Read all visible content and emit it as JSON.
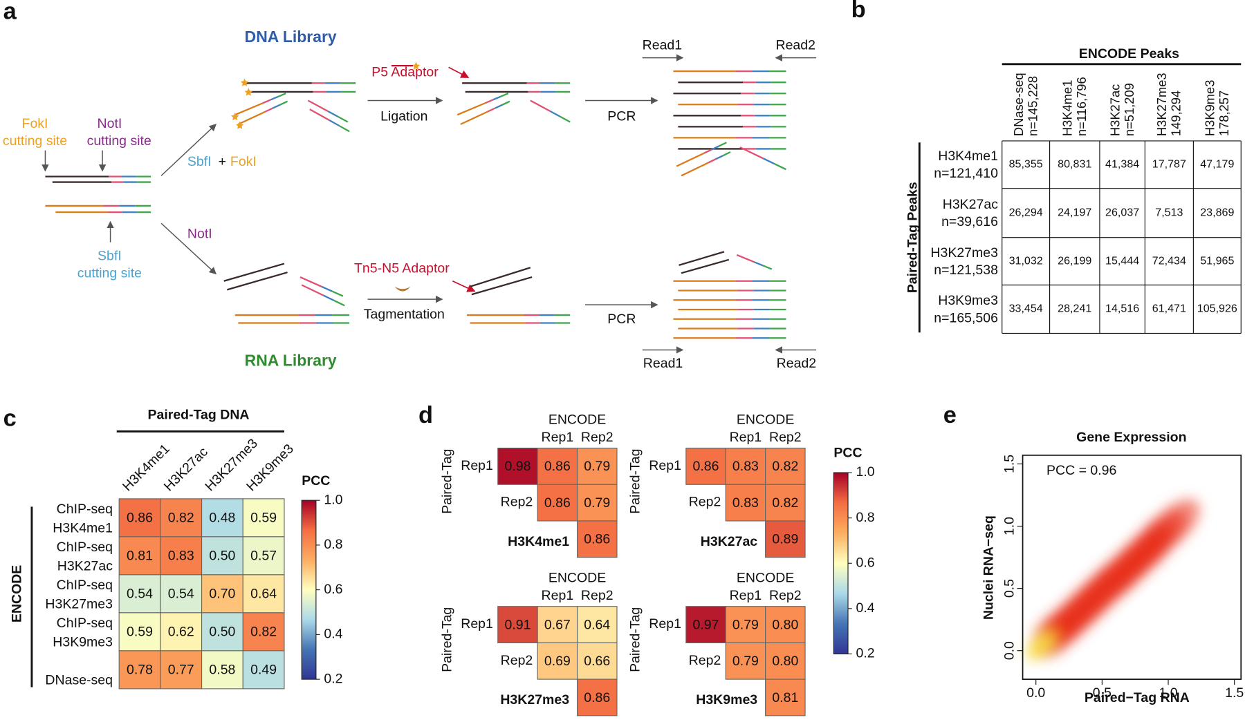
{
  "panel_labels": [
    "a",
    "b",
    "c",
    "d",
    "e"
  ],
  "diagram": {
    "dna_library": "DNA Library",
    "rna_library": "RNA Library",
    "foki_site": [
      "FokI",
      "cutting site"
    ],
    "noti_site": [
      "NotI",
      "cutting site"
    ],
    "sbfi_site": [
      "SbfI",
      "cutting site"
    ],
    "sbfi_foki": [
      "SbfI",
      "+",
      "FokI"
    ],
    "noti": "NotI",
    "dna_steps": {
      "adaptor": "P5 Adaptor",
      "step": "Ligation",
      "pcr": "PCR",
      "read1": "Read1",
      "read2": "Read2"
    },
    "rna_steps": {
      "adaptor": "Tn5-N5 Adaptor",
      "step": "Tagmentation",
      "pcr": "PCR",
      "read1": "Read1",
      "read2": "Read2"
    }
  },
  "table": {
    "title": "ENCODE Peaks",
    "row_title": "Paired-Tag Peaks",
    "columns": [
      [
        "DNase-seq",
        "n=145,228"
      ],
      [
        "H3K4me1",
        "n=116,796"
      ],
      [
        "H3K27ac",
        "n=51,209"
      ],
      [
        "H3K27me3",
        "149,294"
      ],
      [
        "H3K9me3",
        "178,257"
      ]
    ],
    "rows": [
      [
        "H3K4me1",
        "n=121,410"
      ],
      [
        "H3K27ac",
        "n=39,616"
      ],
      [
        "H3K27me3",
        "n=121,538"
      ],
      [
        "H3K9me3",
        "n=165,506"
      ]
    ],
    "cells": [
      [
        "85,355",
        "80,831",
        "41,384",
        "17,787",
        "47,179"
      ],
      [
        "26,294",
        "24,197",
        "26,037",
        "7,513",
        "23,869"
      ],
      [
        "31,032",
        "26,199",
        "15,444",
        "72,434",
        "51,965"
      ],
      [
        "33,454",
        "28,241",
        "14,516",
        "61,471",
        "105,926"
      ]
    ]
  },
  "chart_data": [
    {
      "type": "heatmap",
      "title": "Paired-Tag DNA",
      "y_title": "ENCODE",
      "x_categories": [
        "H3K4me1",
        "H3K27ac",
        "H3K27me3",
        "H3K9me3"
      ],
      "y_categories": [
        [
          "ChIP-seq",
          "H3K4me1"
        ],
        [
          "ChIP-seq",
          "H3K27ac"
        ],
        [
          "ChIP-seq",
          "H3K27me3"
        ],
        [
          "ChIP-seq",
          "H3K9me3"
        ],
        [
          "DNase-seq"
        ]
      ],
      "values": [
        [
          0.86,
          0.82,
          0.48,
          0.59
        ],
        [
          0.81,
          0.83,
          0.5,
          0.57
        ],
        [
          0.54,
          0.54,
          0.7,
          0.64
        ],
        [
          0.59,
          0.62,
          0.5,
          0.82
        ],
        [
          0.78,
          0.77,
          0.58,
          0.49
        ]
      ],
      "value_labels": [
        [
          "0.86",
          "0.82",
          "0.48",
          "0.59"
        ],
        [
          "0.81",
          "0.83",
          "0.50",
          "0.57"
        ],
        [
          "0.54",
          "0.54",
          "0.70",
          "0.64"
        ],
        [
          "0.59",
          "0.62",
          "0.50",
          "0.82"
        ],
        [
          "0.78",
          "0.77",
          "0.58",
          "0.49"
        ]
      ],
      "colorbar": {
        "title": "PCC",
        "clim": [
          0.2,
          1
        ],
        "ticks": [
          0.2,
          0.4,
          0.6,
          0.8,
          {
            "value": 1,
            "label": "1.0"
          }
        ],
        "colormap": [
          "#313695",
          "#4575b4",
          "#abd9e9",
          "#ffffbf",
          "#fdae61",
          "#f46d43",
          "#a50026"
        ]
      }
    },
    {
      "type": "heatmap",
      "name": "H3K4me1",
      "x_title": "ENCODE",
      "y_title": "Paired-Tag",
      "x_categories": [
        null,
        "Rep1",
        "Rep2"
      ],
      "y_categories": [
        "Rep1",
        "Rep2",
        null
      ],
      "values": [
        [
          0.98,
          0.86,
          0.79
        ],
        [
          null,
          0.86,
          0.79
        ],
        [
          null,
          null,
          0.86
        ]
      ],
      "value_labels": [
        [
          "0.98",
          "0.86",
          "0.79"
        ],
        [
          null,
          "0.86",
          "0.79"
        ],
        [
          null,
          null,
          "0.86"
        ]
      ],
      "colorbar": {
        "title": "PCC",
        "clim": [
          0.2,
          1
        ],
        "ticks": [
          0.2,
          0.4,
          0.6,
          0.8,
          {
            "value": 1,
            "label": "1.0"
          }
        ],
        "colormap": [
          "#313695",
          "#4575b4",
          "#abd9e9",
          "#ffffbf",
          "#fdae61",
          "#f46d43",
          "#a50026"
        ]
      }
    },
    {
      "type": "heatmap",
      "name": "H3K27ac",
      "x_title": "ENCODE",
      "y_title": "Paired-Tag",
      "x_categories": [
        null,
        "Rep1",
        "Rep2"
      ],
      "y_categories": [
        "Rep1",
        "Rep2",
        null
      ],
      "values": [
        [
          0.86,
          0.83,
          0.82
        ],
        [
          null,
          0.83,
          0.82
        ],
        [
          null,
          null,
          0.89
        ]
      ],
      "value_labels": [
        [
          "0.86",
          "0.83",
          "0.82"
        ],
        [
          null,
          "0.83",
          "0.82"
        ],
        [
          null,
          null,
          "0.89"
        ]
      ]
    },
    {
      "type": "heatmap",
      "name": "H3K27me3",
      "x_title": "ENCODE",
      "y_title": "Paired-Tag",
      "x_categories": [
        null,
        "Rep1",
        "Rep2"
      ],
      "y_categories": [
        "Rep1",
        "Rep2",
        null
      ],
      "values": [
        [
          0.91,
          0.67,
          0.64
        ],
        [
          null,
          0.69,
          0.66
        ],
        [
          null,
          null,
          0.86
        ]
      ],
      "value_labels": [
        [
          "0.91",
          "0.67",
          "0.64"
        ],
        [
          null,
          "0.69",
          "0.66"
        ],
        [
          null,
          null,
          "0.86"
        ]
      ]
    },
    {
      "type": "heatmap",
      "name": "H3K9me3",
      "x_title": "ENCODE",
      "y_title": "Paired-Tag",
      "x_categories": [
        null,
        "Rep1",
        "Rep2"
      ],
      "y_categories": [
        "Rep1",
        "Rep2",
        null
      ],
      "values": [
        [
          0.97,
          0.79,
          0.8
        ],
        [
          null,
          0.79,
          0.8
        ],
        [
          null,
          null,
          0.81
        ]
      ],
      "value_labels": [
        [
          "0.97",
          "0.79",
          "0.80"
        ],
        [
          null,
          "0.79",
          "0.80"
        ],
        [
          null,
          null,
          "0.81"
        ]
      ]
    },
    {
      "type": "scatter",
      "title": "Gene Expression",
      "x_label": "Paired−Tag RNA",
      "y_label": "Nuclei RNA−seq",
      "annotation": "PCC = 0.96",
      "x": [
        0.03,
        0.08,
        0.15,
        0.25,
        0.35,
        0.45,
        0.55,
        0.65,
        0.75,
        0.85,
        0.95,
        1.05
      ],
      "values": [
        0.03,
        0.08,
        0.14,
        0.23,
        0.33,
        0.43,
        0.53,
        0.62,
        0.72,
        0.82,
        0.93,
        1.02
      ],
      "colors": [
        "#f7e04a",
        "#f08a2a",
        "#e8321e",
        "#e8321e",
        "#e8321e",
        "#e8321e",
        "#e8321e",
        "#e8321e",
        "#e8321e",
        "#e8321e",
        "#ec4a38",
        "#f28070"
      ],
      "xlim": [
        -0.1,
        1.55
      ],
      "ylim": [
        -0.23,
        1.57
      ],
      "xticks": [
        {
          "value": 0,
          "label": "0.0"
        },
        {
          "value": 0.5,
          "label": "0.5"
        },
        {
          "value": 1,
          "label": "1.0"
        },
        {
          "value": 1.5,
          "label": "1.5"
        }
      ],
      "yticks": [
        {
          "value": 0,
          "label": "0.0"
        },
        {
          "value": 0.5,
          "label": "0.5"
        },
        {
          "value": 1,
          "label": "1.0"
        },
        {
          "value": 1.5,
          "label": "1.5"
        }
      ]
    }
  ]
}
